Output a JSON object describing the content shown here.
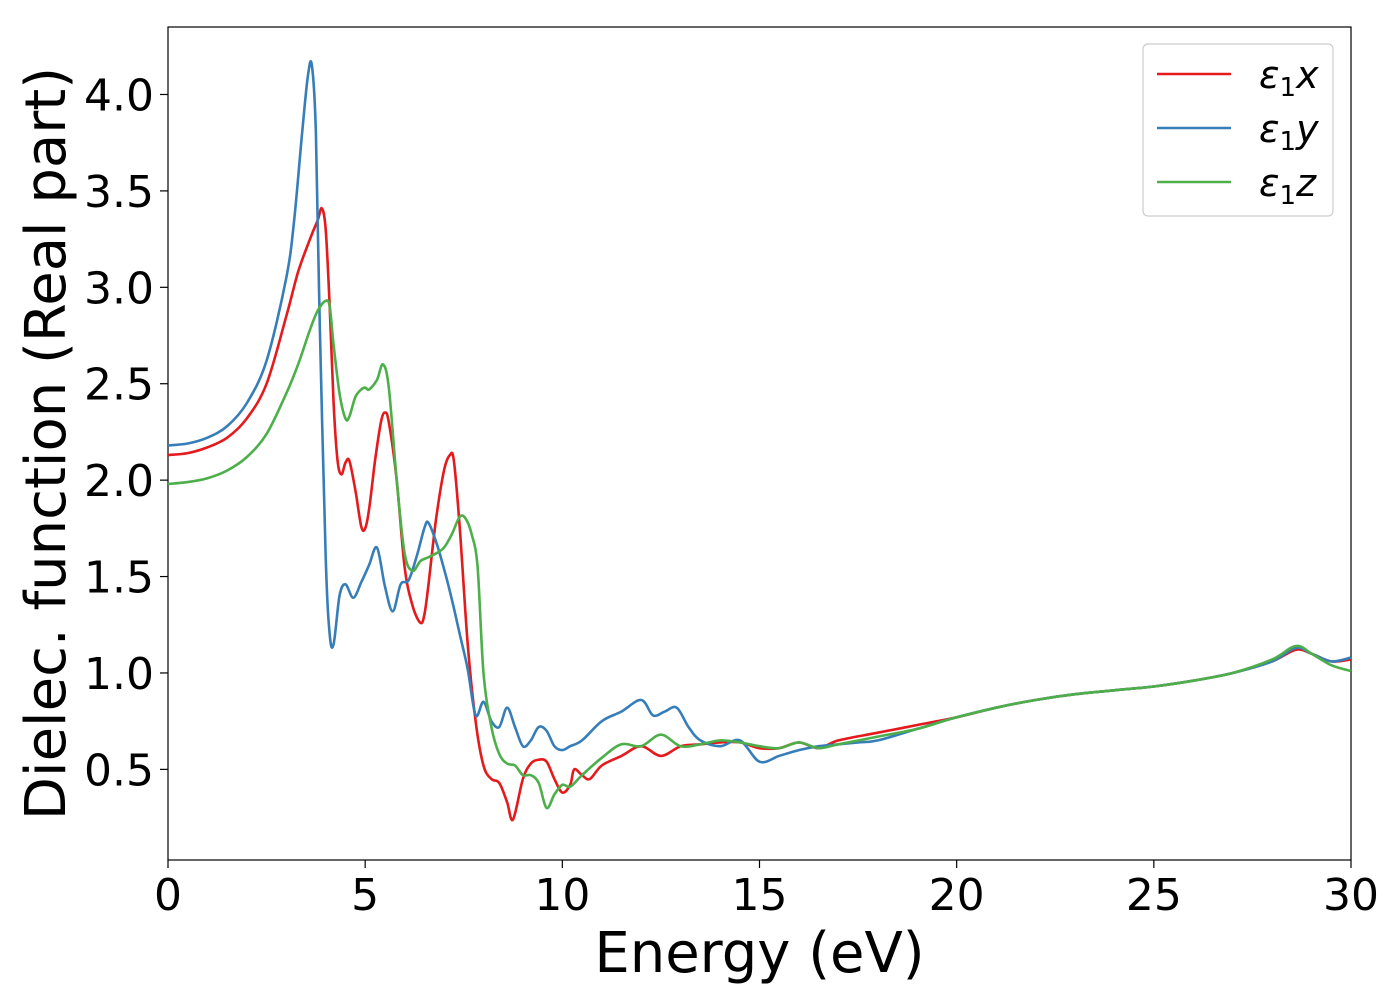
{
  "chart_data": {
    "type": "line",
    "xlabel": "Energy (eV)",
    "ylabel": "Dielec. function (Real part)",
    "xlim": [
      0,
      30
    ],
    "ylim": [
      0.03,
      4.35
    ],
    "xticks": [
      "0",
      "5",
      "10",
      "15",
      "20",
      "25",
      "30"
    ],
    "yticks": [
      "0.5",
      "1.0",
      "1.5",
      "2.0",
      "2.5",
      "3.0",
      "3.5",
      "4.0"
    ],
    "grid": false,
    "legend_position": "top-right",
    "series": [
      {
        "name": "ε1x",
        "legend_base": "ε",
        "legend_sub": "1",
        "legend_var": "x",
        "color": "#e41a1c",
        "x": [
          0,
          0.5,
          1.0,
          1.5,
          2.0,
          2.5,
          3.0,
          3.3,
          3.6,
          3.8,
          3.9,
          4.0,
          4.1,
          4.2,
          4.3,
          4.4,
          4.5,
          4.6,
          4.75,
          4.9,
          5.0,
          5.1,
          5.25,
          5.4,
          5.5,
          5.6,
          5.8,
          6.0,
          6.2,
          6.4,
          6.5,
          6.6,
          6.8,
          7.0,
          7.15,
          7.25,
          7.4,
          7.6,
          7.8,
          8.0,
          8.2,
          8.4,
          8.6,
          8.75,
          9.0,
          9.2,
          9.4,
          9.6,
          9.8,
          10.0,
          10.2,
          10.3,
          10.5,
          10.7,
          11.0,
          11.5,
          12.0,
          12.5,
          13.0,
          13.5,
          14.0,
          14.5,
          15.0,
          15.5,
          16.0,
          16.5,
          17.0,
          18.0,
          19.0,
          20.0,
          21.0,
          22.0,
          23.0,
          24.0,
          25.0,
          26.0,
          27.0,
          28.0,
          28.6,
          29.0,
          29.5,
          30.0
        ],
        "y": [
          2.13,
          2.14,
          2.17,
          2.22,
          2.32,
          2.5,
          2.85,
          3.08,
          3.25,
          3.35,
          3.41,
          3.3,
          2.9,
          2.4,
          2.1,
          2.03,
          2.09,
          2.1,
          1.95,
          1.76,
          1.75,
          1.85,
          2.1,
          2.3,
          2.35,
          2.3,
          2.0,
          1.55,
          1.35,
          1.26,
          1.3,
          1.45,
          1.8,
          2.05,
          2.13,
          2.1,
          1.75,
          1.15,
          0.75,
          0.52,
          0.45,
          0.43,
          0.33,
          0.24,
          0.45,
          0.53,
          0.55,
          0.54,
          0.45,
          0.38,
          0.42,
          0.5,
          0.47,
          0.45,
          0.52,
          0.57,
          0.62,
          0.57,
          0.62,
          0.63,
          0.64,
          0.64,
          0.61,
          0.61,
          0.64,
          0.61,
          0.65,
          0.69,
          0.73,
          0.77,
          0.82,
          0.86,
          0.89,
          0.91,
          0.93,
          0.96,
          1.0,
          1.06,
          1.12,
          1.1,
          1.06,
          1.07
        ]
      },
      {
        "name": "ε1y",
        "legend_base": "ε",
        "legend_sub": "1",
        "legend_var": "y",
        "color": "#377eb8",
        "x": [
          0,
          0.5,
          1.0,
          1.5,
          2.0,
          2.5,
          3.0,
          3.2,
          3.4,
          3.55,
          3.65,
          3.75,
          3.85,
          4.0,
          4.1,
          4.2,
          4.35,
          4.5,
          4.7,
          4.9,
          5.1,
          5.3,
          5.5,
          5.7,
          5.9,
          6.1,
          6.3,
          6.5,
          6.6,
          6.8,
          7.0,
          7.2,
          7.4,
          7.6,
          7.8,
          8.0,
          8.2,
          8.4,
          8.6,
          8.8,
          9.0,
          9.2,
          9.4,
          9.6,
          9.8,
          10.0,
          10.2,
          10.5,
          11.0,
          11.5,
          12.0,
          12.3,
          12.6,
          12.9,
          13.2,
          13.5,
          14.0,
          14.5,
          15.0,
          15.5,
          16.0,
          16.5,
          17.0,
          17.5,
          18.0,
          19.0,
          20.0,
          21.0,
          22.0,
          23.0,
          24.0,
          25.0,
          26.0,
          27.0,
          28.0,
          28.6,
          29.0,
          29.5,
          30.0
        ],
        "y": [
          2.18,
          2.19,
          2.22,
          2.28,
          2.4,
          2.62,
          3.05,
          3.35,
          3.8,
          4.1,
          4.15,
          3.8,
          2.8,
          1.6,
          1.2,
          1.15,
          1.4,
          1.46,
          1.39,
          1.47,
          1.56,
          1.65,
          1.45,
          1.32,
          1.46,
          1.48,
          1.6,
          1.75,
          1.78,
          1.68,
          1.54,
          1.38,
          1.2,
          1.02,
          0.78,
          0.85,
          0.75,
          0.72,
          0.82,
          0.72,
          0.62,
          0.65,
          0.72,
          0.7,
          0.62,
          0.6,
          0.62,
          0.65,
          0.75,
          0.8,
          0.86,
          0.78,
          0.8,
          0.82,
          0.72,
          0.65,
          0.62,
          0.65,
          0.54,
          0.57,
          0.6,
          0.62,
          0.63,
          0.64,
          0.65,
          0.71,
          0.77,
          0.82,
          0.86,
          0.89,
          0.91,
          0.93,
          0.96,
          1.0,
          1.06,
          1.13,
          1.1,
          1.06,
          1.08
        ]
      },
      {
        "name": "ε1z",
        "legend_base": "ε",
        "legend_sub": "1",
        "legend_var": "z",
        "color": "#4daf4a",
        "x": [
          0,
          0.5,
          1.0,
          1.5,
          2.0,
          2.5,
          3.0,
          3.3,
          3.6,
          3.8,
          4.0,
          4.1,
          4.2,
          4.35,
          4.5,
          4.6,
          4.75,
          4.9,
          5.0,
          5.1,
          5.3,
          5.45,
          5.6,
          5.8,
          6.0,
          6.2,
          6.4,
          6.6,
          6.8,
          7.0,
          7.2,
          7.4,
          7.55,
          7.7,
          7.85,
          8.0,
          8.2,
          8.4,
          8.6,
          8.8,
          9.0,
          9.2,
          9.4,
          9.6,
          9.8,
          10.0,
          10.2,
          10.5,
          11.0,
          11.5,
          12.0,
          12.5,
          13.0,
          13.5,
          14.0,
          14.5,
          15.0,
          15.5,
          16.0,
          16.5,
          17.0,
          18.0,
          19.0,
          20.0,
          21.0,
          22.0,
          23.0,
          24.0,
          25.0,
          26.0,
          27.0,
          28.0,
          28.6,
          29.0,
          29.5,
          30.0
        ],
        "y": [
          1.98,
          1.99,
          2.01,
          2.05,
          2.12,
          2.24,
          2.45,
          2.6,
          2.78,
          2.88,
          2.93,
          2.9,
          2.7,
          2.45,
          2.32,
          2.33,
          2.43,
          2.47,
          2.48,
          2.47,
          2.52,
          2.6,
          2.48,
          2.0,
          1.62,
          1.53,
          1.58,
          1.6,
          1.62,
          1.65,
          1.72,
          1.81,
          1.8,
          1.72,
          1.55,
          1.0,
          0.72,
          0.58,
          0.53,
          0.52,
          0.47,
          0.47,
          0.43,
          0.3,
          0.37,
          0.42,
          0.41,
          0.47,
          0.56,
          0.63,
          0.62,
          0.68,
          0.62,
          0.63,
          0.65,
          0.64,
          0.62,
          0.61,
          0.64,
          0.61,
          0.63,
          0.67,
          0.71,
          0.77,
          0.82,
          0.86,
          0.89,
          0.91,
          0.93,
          0.96,
          1.0,
          1.07,
          1.14,
          1.1,
          1.04,
          1.01
        ]
      }
    ]
  }
}
